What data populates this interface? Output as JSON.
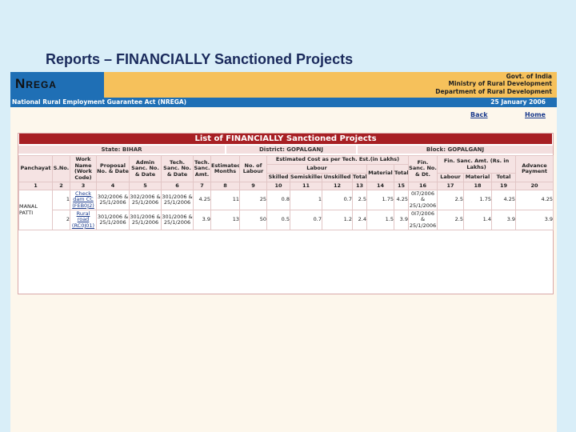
{
  "slide": {
    "title": "Reports – FINANCIALLY Sanctioned Projects"
  },
  "header": {
    "logo_n": "N",
    "logo_rega": "REGA",
    "gov_line1": "Govt. of India",
    "gov_line2": "Ministry of Rural Development",
    "gov_line3": "Department of Rural Development",
    "act": "National Rural Employment Guarantee Act (NREGA)",
    "date": "25 January 2006"
  },
  "nav": {
    "back": "Back",
    "home": "Home"
  },
  "report": {
    "title": "List of FINANCIALLY Sanctioned Projects",
    "state": "State: BIHAR",
    "district": "District: GOPALGANJ",
    "block": "Block: GOPALGANJ",
    "headers": {
      "panchayat": "Panchayat",
      "sno": "S.No.",
      "work_name": "Work Name (Work Code)",
      "proposal": "Proposal No. & Date",
      "admin": "Admin Sanc. No. & Date",
      "tech": "Tech. Sanc. No. & Date",
      "tech_amt": "Tech. Sanc. Amt.",
      "est_months": "Estimated Months",
      "no_labour": "No. of Labour",
      "estimated_cost": "Estimated Cost as per Tech. Est.(in Lakhs)",
      "labour": "Labour",
      "skilled": "Skilled",
      "semiskilled": "Semiskilled",
      "unskilled": "Unskilled",
      "total": "Total",
      "material": "Material",
      "total2": "Total",
      "fin_sanc": "Fin. Sanc. No. & Dt.",
      "fin_amt": "Fin. Sanc. Amt. (Rs. in Lakhs)",
      "fin_labour": "Labour",
      "fin_material": "Material",
      "fin_total": "Total",
      "advance": "Advance Payment"
    },
    "col_numbers": [
      "1",
      "2",
      "3",
      "4",
      "5",
      "6",
      "7",
      "8",
      "9",
      "10",
      "11",
      "12",
      "13",
      "14",
      "15",
      "16",
      "17",
      "18",
      "19",
      "20"
    ],
    "panchayat_name": "MANAL PATTI",
    "rows": [
      {
        "sno": "1",
        "work_name": "Check dam CC (FEB0J2)",
        "proposal": "302/2006 & 25/1/2006",
        "admin": "302/2006 & 25/1/2006",
        "tech": "301/2006 & 25/1/2006",
        "tech_amt": "4.25",
        "est_months": "11",
        "no_labour": "25",
        "skilled": "0.8",
        "semiskilled": "1",
        "unskilled": "0.7",
        "labour_total": "2.5",
        "material": "1.75",
        "total": "4.25",
        "fin_sanc": "0I7/2006 & 25/1/2006",
        "fin_labour": "2.5",
        "fin_material": "1.75",
        "fin_total": "4.25",
        "advance": "4.25"
      },
      {
        "sno": "2",
        "work_name": "Rural road (RC0J01)",
        "proposal": "301/2006 & 25/1/2006",
        "admin": "301/2006 & 25/1/2006",
        "tech": "301/2006 & 25/1/2006",
        "tech_amt": "3.9",
        "est_months": "13",
        "no_labour": "50",
        "skilled": "0.5",
        "semiskilled": "0.7",
        "unskilled": "1.2",
        "labour_total": "2.4",
        "material": "1.5",
        "total": "3.9",
        "fin_sanc": "0I7/2006 & 25/1/2006",
        "fin_labour": "2.5",
        "fin_material": "1.4",
        "fin_total": "3.9",
        "advance": "3.9"
      }
    ]
  }
}
